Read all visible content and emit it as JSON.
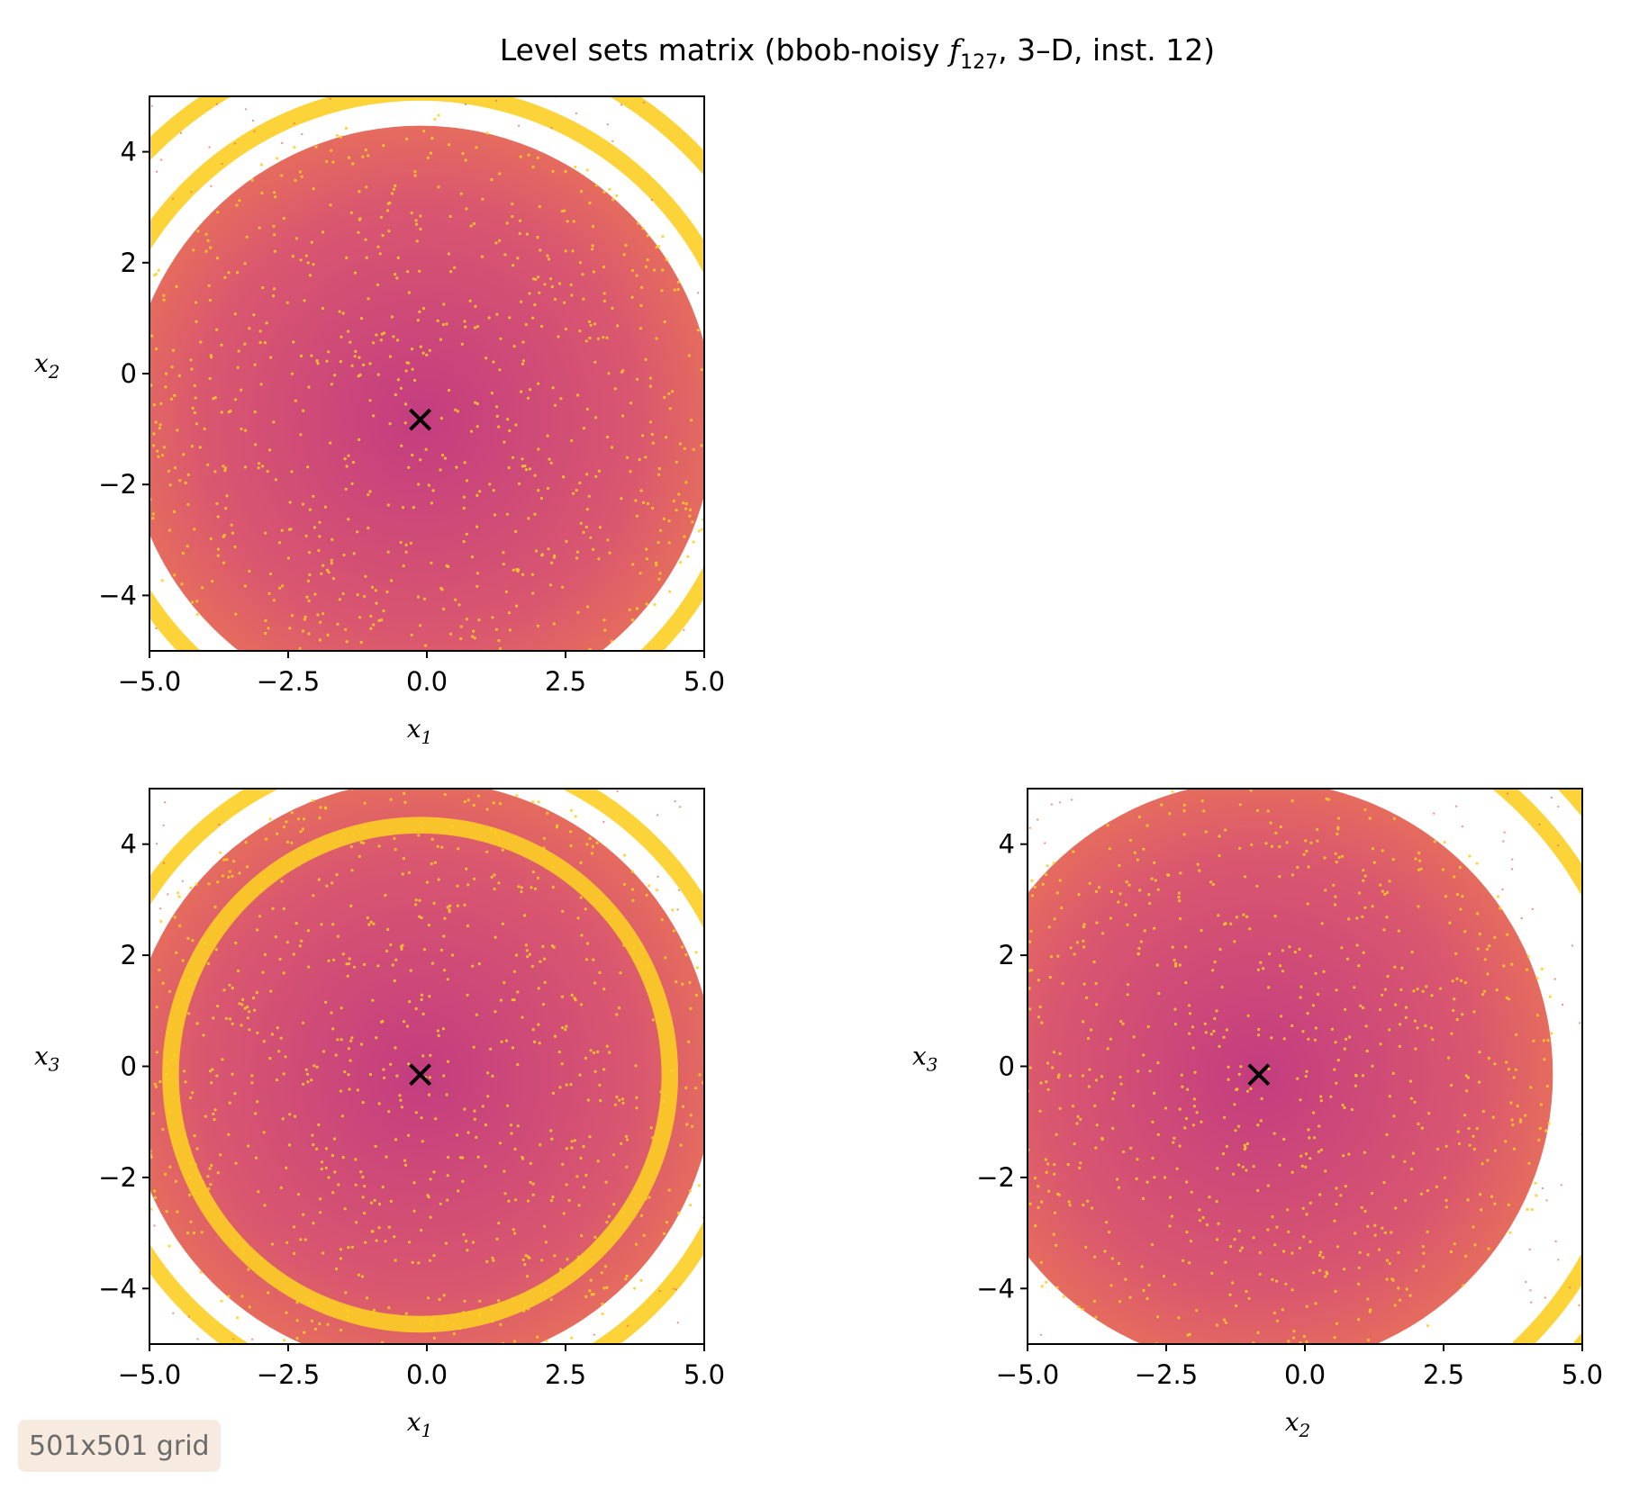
{
  "figure": {
    "title_prefix": "Level sets matrix (bbob-noisy ",
    "title_func": "f",
    "title_func_sub": "127",
    "title_suffix": ", 3–D, inst. 12)",
    "badge": "501x501 grid"
  },
  "colors": {
    "low": "#c33d80",
    "mid": "#e8705a",
    "high": "#fccf25",
    "marker": "#000000"
  },
  "chart_data": [
    {
      "type": "scatter",
      "title": "",
      "xlabel": "x",
      "xlabel_sub": "1",
      "ylabel": "x",
      "ylabel_sub": "2",
      "xlim": [
        -5,
        5
      ],
      "ylim": [
        -5,
        5
      ],
      "xticks": [
        -5.0,
        -2.5,
        0.0,
        2.5,
        5.0
      ],
      "xtick_labels": [
        "−5.0",
        "−2.5",
        "0.0",
        "2.5",
        "5.0"
      ],
      "yticks": [
        -4,
        -2,
        0,
        2,
        4
      ],
      "ytick_labels": [
        "−4",
        "−2",
        "0",
        "2",
        "4"
      ],
      "optimum": {
        "x": -0.12,
        "y": -0.83,
        "marker": "x"
      },
      "level_set_rings": [
        {
          "center": [
            -0.12,
            -0.83
          ],
          "radius": 5.9,
          "width": 0.3,
          "color": "high"
        },
        {
          "center": [
            -0.12,
            -0.83
          ],
          "radius": 6.9,
          "width": 0.3,
          "color": "high"
        }
      ]
    },
    {
      "type": "scatter",
      "title": "",
      "xlabel": "x",
      "xlabel_sub": "1",
      "ylabel": "x",
      "ylabel_sub": "3",
      "xlim": [
        -5,
        5
      ],
      "ylim": [
        -5,
        5
      ],
      "xticks": [
        -5.0,
        -2.5,
        0.0,
        2.5,
        5.0
      ],
      "xtick_labels": [
        "−5.0",
        "−2.5",
        "0.0",
        "2.5",
        "5.0"
      ],
      "yticks": [
        -4,
        -2,
        0,
        2,
        4
      ],
      "ytick_labels": [
        "−4",
        "−2",
        "0",
        "2",
        "4"
      ],
      "optimum": {
        "x": -0.12,
        "y": -0.15,
        "marker": "x"
      },
      "level_set_rings": [
        {
          "center": [
            -0.12,
            -0.15
          ],
          "radius": 4.5,
          "width": 0.3,
          "color": "high"
        },
        {
          "center": [
            -0.12,
            -0.15
          ],
          "radius": 5.9,
          "width": 0.3,
          "color": "high"
        }
      ]
    },
    {
      "type": "scatter",
      "title": "",
      "xlabel": "x",
      "xlabel_sub": "2",
      "ylabel": "x",
      "ylabel_sub": "3",
      "xlim": [
        -5,
        5
      ],
      "ylim": [
        -5,
        5
      ],
      "xticks": [
        -5.0,
        -2.5,
        0.0,
        2.5,
        5.0
      ],
      "xtick_labels": [
        "−5.0",
        "−2.5",
        "0.0",
        "2.5",
        "5.0"
      ],
      "yticks": [
        -4,
        -2,
        0,
        2,
        4
      ],
      "ytick_labels": [
        "−4",
        "−2",
        "0",
        "2",
        "4"
      ],
      "optimum": {
        "x": -0.83,
        "y": -0.15,
        "marker": "x"
      },
      "level_set_rings": [
        {
          "center": [
            -0.83,
            -0.15
          ],
          "radius": 6.8,
          "width": 0.3,
          "color": "high"
        },
        {
          "center": [
            -0.83,
            -0.15
          ],
          "radius": 7.6,
          "width": 0.3,
          "color": "high"
        }
      ]
    }
  ]
}
